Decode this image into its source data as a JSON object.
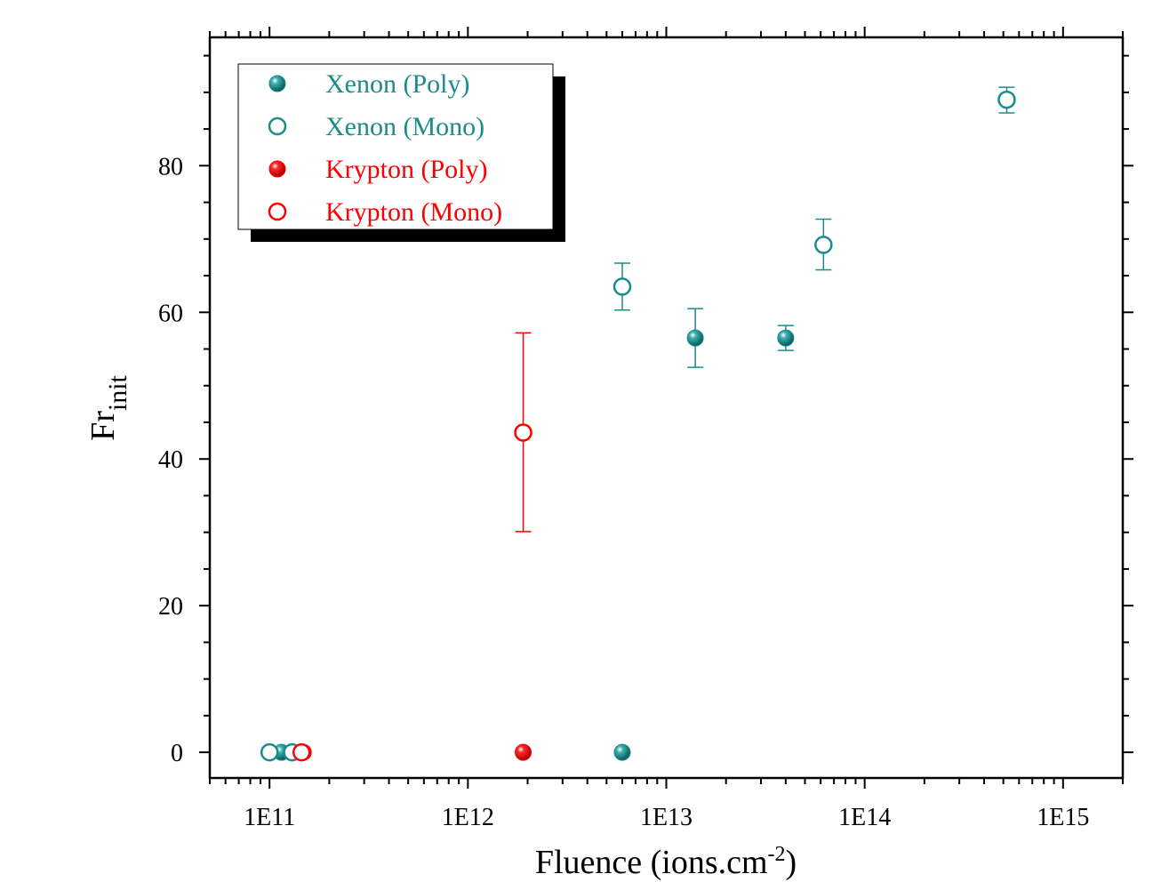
{
  "chart_data": {
    "type": "scatter",
    "title": "",
    "xlabel": "Fluence (ions.cm",
    "xlabel_sup": "-2",
    "xlabel_suffix": ")",
    "ylabel": "Fr",
    "ylabel_sub": "init",
    "x_scale": "log",
    "xlim": [
      50000000000.0,
      2000000000000000.0
    ],
    "ylim": [
      -3.5,
      97.5
    ],
    "x_ticks": [
      {
        "value": 100000000000.0,
        "label": "1E11"
      },
      {
        "value": 1000000000000.0,
        "label": "1E12"
      },
      {
        "value": 10000000000000.0,
        "label": "1E13"
      },
      {
        "value": 100000000000000.0,
        "label": "1E14"
      },
      {
        "value": 1000000000000000.0,
        "label": "1E15"
      }
    ],
    "y_ticks": [
      {
        "value": 0,
        "label": "0"
      },
      {
        "value": 20,
        "label": "20"
      },
      {
        "value": 40,
        "label": "40"
      },
      {
        "value": 60,
        "label": "60"
      },
      {
        "value": 80,
        "label": "80"
      }
    ],
    "grid": false,
    "legend_position": "top-left",
    "series": [
      {
        "name": "Xenon (Poly)",
        "color": "#1a8c8c",
        "marker": "filled",
        "points": [
          {
            "x": 115000000000.0,
            "y": 0
          },
          {
            "x": 6000000000000.0,
            "y": 0
          },
          {
            "x": 14000000000000.0,
            "y": 56.5,
            "err_low": 52.5,
            "err_high": 60.5
          },
          {
            "x": 40000000000000.0,
            "y": 56.5,
            "err_low": 54.8,
            "err_high": 58.2
          }
        ]
      },
      {
        "name": "Xenon (Mono)",
        "color": "#1a8c8c",
        "marker": "open",
        "points": [
          {
            "x": 100000000000.0,
            "y": 0
          },
          {
            "x": 130000000000.0,
            "y": 0
          },
          {
            "x": 6000000000000.0,
            "y": 63.5,
            "err_low": 60.3,
            "err_high": 66.7
          },
          {
            "x": 62000000000000.0,
            "y": 69.2,
            "err_low": 65.8,
            "err_high": 72.7
          },
          {
            "x": 520000000000000.0,
            "y": 89.0,
            "err_low": 87.2,
            "err_high": 90.7
          }
        ]
      },
      {
        "name": "Krypton (Poly)",
        "color": "#ff0000",
        "marker": "filled",
        "points": [
          {
            "x": 148000000000.0,
            "y": 0
          },
          {
            "x": 1900000000000.0,
            "y": 0
          }
        ]
      },
      {
        "name": "Krypton (Mono)",
        "color": "#ff0000",
        "marker": "open",
        "points": [
          {
            "x": 145000000000.0,
            "y": 0
          },
          {
            "x": 1900000000000.0,
            "y": 43.6,
            "err_low": 30.1,
            "err_high": 57.2
          }
        ]
      }
    ]
  }
}
